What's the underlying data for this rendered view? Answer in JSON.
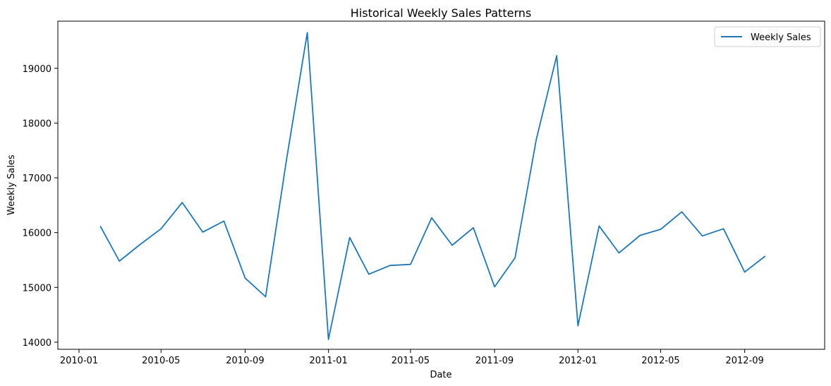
{
  "chart_data": {
    "type": "line",
    "title": "Historical Weekly Sales Patterns",
    "xlabel": "Date",
    "ylabel": "Weekly Sales",
    "x_ticks": [
      "2010-01",
      "2010-05",
      "2010-09",
      "2011-01",
      "2011-05",
      "2011-09",
      "2012-01",
      "2012-05",
      "2012-09"
    ],
    "y_ticks": [
      14000,
      15000,
      16000,
      17000,
      18000,
      19000
    ],
    "xlim": [
      "2009-12-01",
      "2012-12-27"
    ],
    "ylim": [
      13870,
      19860
    ],
    "grid": false,
    "legend_position": "upper right",
    "series": [
      {
        "name": "Weekly Sales",
        "color": "#1f77b4",
        "x": [
          "2010-02-01",
          "2010-03-01",
          "2010-04-01",
          "2010-05-01",
          "2010-06-01",
          "2010-07-01",
          "2010-08-01",
          "2010-09-01",
          "2010-10-01",
          "2010-11-01",
          "2010-12-01",
          "2011-01-01",
          "2011-02-01",
          "2011-03-01",
          "2011-04-01",
          "2011-05-01",
          "2011-06-01",
          "2011-07-01",
          "2011-08-01",
          "2011-09-01",
          "2011-10-01",
          "2011-11-01",
          "2011-12-01",
          "2012-01-01",
          "2012-02-01",
          "2012-03-01",
          "2012-04-01",
          "2012-05-01",
          "2012-06-01",
          "2012-07-01",
          "2012-08-01",
          "2012-09-01",
          "2012-10-01"
        ],
        "values": [
          16120,
          15480,
          15790,
          16070,
          16550,
          16010,
          16210,
          15170,
          14830,
          17360,
          19650,
          14050,
          15910,
          15240,
          15400,
          15420,
          16270,
          15770,
          16090,
          15010,
          15540,
          17700,
          19230,
          14300,
          16120,
          15630,
          15950,
          16060,
          16380,
          15940,
          16070,
          15280,
          15570
        ]
      }
    ]
  }
}
